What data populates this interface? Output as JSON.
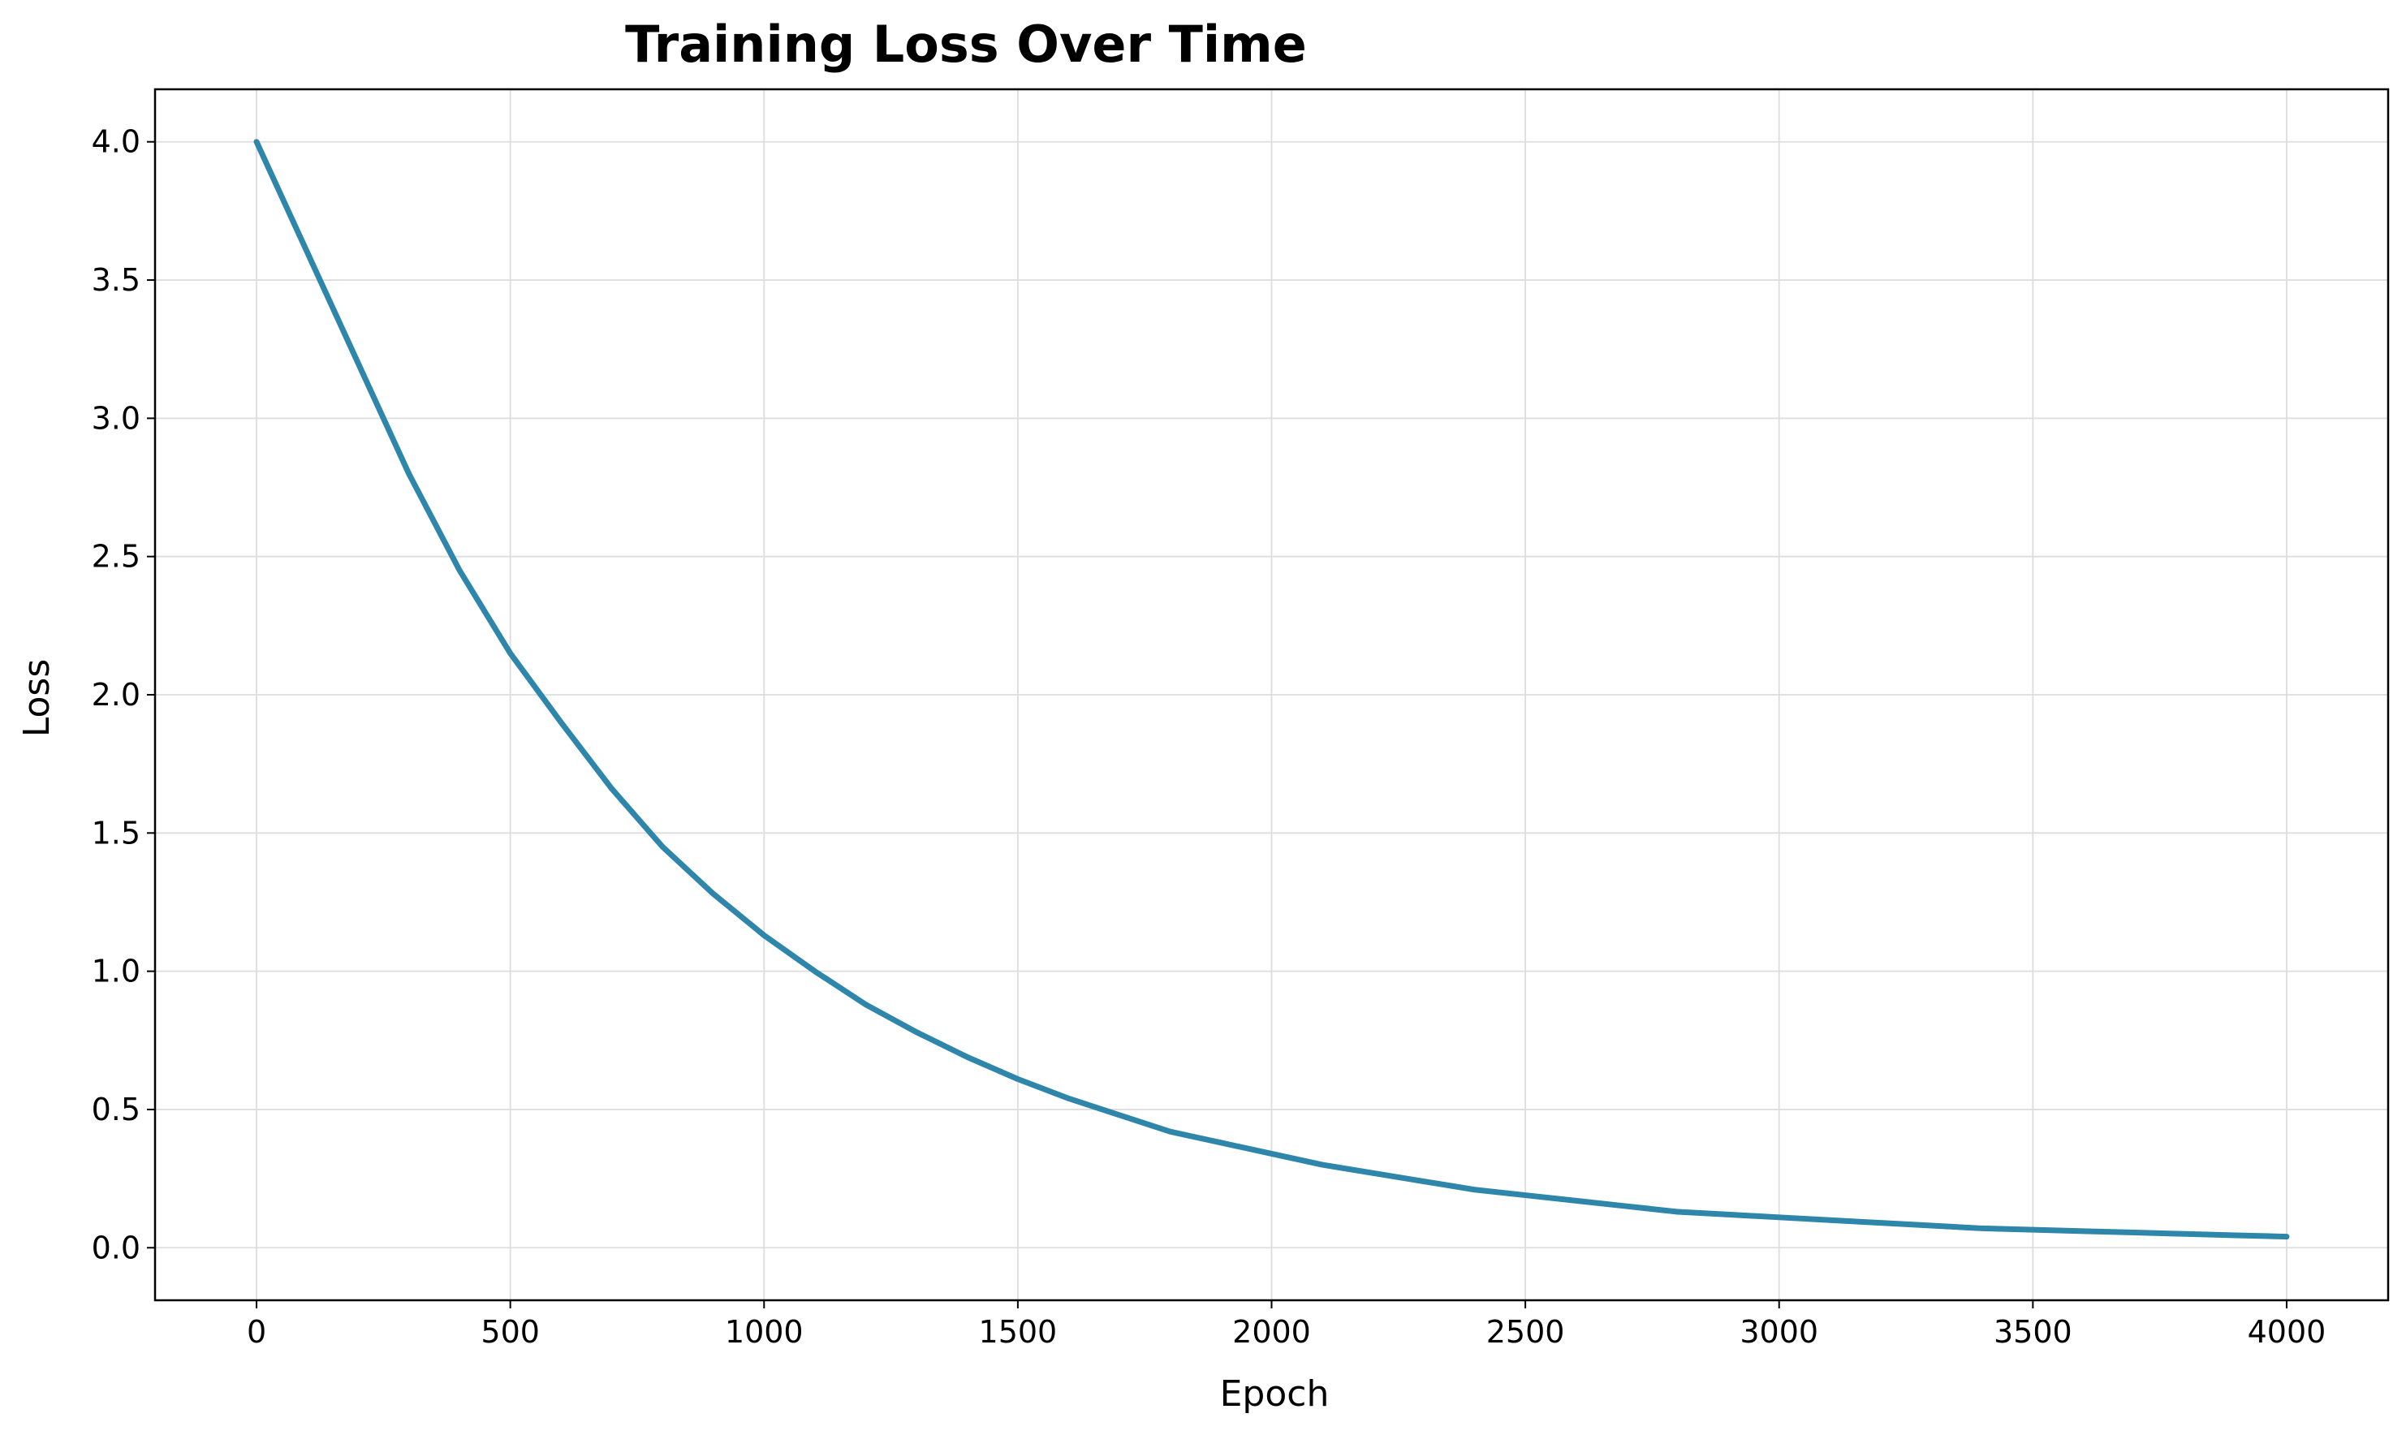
{
  "chart_data": {
    "type": "line",
    "title": "Training Loss Over Time",
    "xlabel": "Epoch",
    "ylabel": "Loss",
    "xlim": [
      -200,
      4200
    ],
    "ylim": [
      -0.19,
      4.19
    ],
    "xticks": [
      0,
      500,
      1000,
      1500,
      2000,
      2500,
      3000,
      3500,
      4000
    ],
    "yticks": [
      0.0,
      0.5,
      1.0,
      1.5,
      2.0,
      2.5,
      3.0,
      3.5,
      4.0
    ],
    "xtick_labels": [
      "0",
      "500",
      "1000",
      "1500",
      "2000",
      "2500",
      "3000",
      "3500",
      "4000"
    ],
    "ytick_labels": [
      "0.0",
      "0.5",
      "1.0",
      "1.5",
      "2.0",
      "2.5",
      "3.0",
      "3.5",
      "4.0"
    ],
    "grid": true,
    "legend": "none",
    "line_color": "#2e86ab",
    "series": [
      {
        "x": [
          0,
          100,
          200,
          300,
          400,
          500,
          600,
          700,
          800,
          900,
          1000,
          1100,
          1200,
          1300,
          1400,
          1500,
          1600,
          1700,
          1800,
          1900,
          2000,
          2100,
          2200,
          2300,
          2400,
          2500,
          2600,
          2700,
          2800,
          2900,
          3000,
          3100,
          3200,
          3300,
          3400,
          3500,
          3600,
          3700,
          3800,
          3900,
          4000
        ],
        "values": [
          4.0,
          3.6,
          3.2,
          2.8,
          2.45,
          2.15,
          1.9,
          1.66,
          1.45,
          1.28,
          1.13,
          1.0,
          0.88,
          0.78,
          0.69,
          0.61,
          0.54,
          0.48,
          0.42,
          0.38,
          0.34,
          0.3,
          0.27,
          0.24,
          0.21,
          0.19,
          0.17,
          0.15,
          0.13,
          0.12,
          0.11,
          0.1,
          0.09,
          0.08,
          0.07,
          0.065,
          0.06,
          0.055,
          0.05,
          0.045,
          0.04
        ]
      }
    ]
  }
}
